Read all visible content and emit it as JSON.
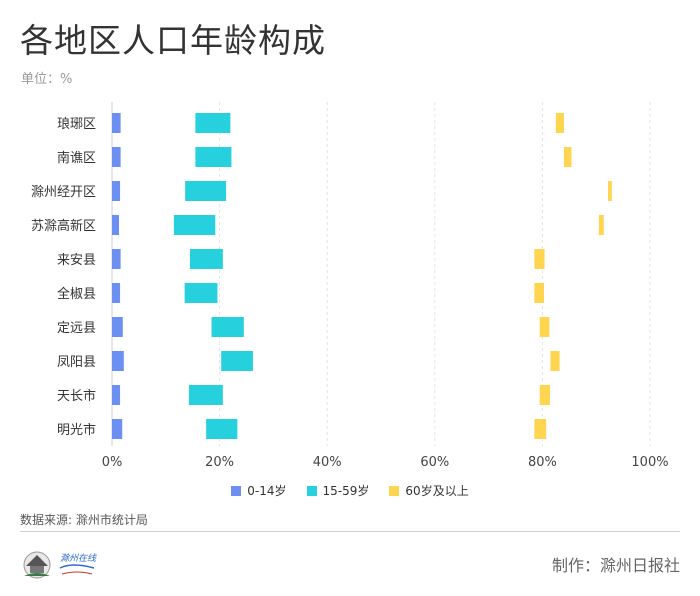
{
  "header": {
    "title": "各地区人口年龄构成",
    "unit": "单位：%"
  },
  "chart_data": {
    "type": "bar",
    "stacking": "floating horizontal ranges",
    "categories": [
      "琅琊区",
      "南谯区",
      "滁州经开区",
      "苏滁高新区",
      "来安县",
      "全椒县",
      "定远县",
      "凤阳县",
      "天长市",
      "明光市"
    ],
    "xlim": [
      0,
      100
    ],
    "xticks": [
      "0%",
      "20%",
      "40%",
      "60%",
      "80%",
      "100%"
    ],
    "grid": "vertical dashed",
    "legend_position": "bottom",
    "series": [
      {
        "name": "0-14岁",
        "color": "#6c8ff2",
        "ranges": [
          [
            0,
            1.6
          ],
          [
            0,
            1.6
          ],
          [
            0,
            1.5
          ],
          [
            0,
            1.3
          ],
          [
            0,
            1.6
          ],
          [
            0,
            1.5
          ],
          [
            0,
            2.0
          ],
          [
            0,
            2.2
          ],
          [
            0,
            1.5
          ],
          [
            0,
            1.9
          ]
        ]
      },
      {
        "name": "15-59岁",
        "color": "#26d0dc",
        "ranges": [
          [
            15.5,
            22.0
          ],
          [
            15.5,
            22.2
          ],
          [
            13.6,
            21.2
          ],
          [
            11.5,
            19.2
          ],
          [
            14.5,
            20.6
          ],
          [
            13.5,
            19.6
          ],
          [
            18.5,
            24.5
          ],
          [
            20.3,
            26.2
          ],
          [
            14.3,
            20.6
          ],
          [
            17.5,
            23.3
          ]
        ]
      },
      {
        "name": "60岁及以上",
        "color": "#ffd44f",
        "ranges": [
          [
            82.5,
            84.0
          ],
          [
            84.0,
            85.4
          ],
          [
            92.2,
            92.9
          ],
          [
            90.5,
            91.4
          ],
          [
            78.5,
            80.4
          ],
          [
            78.5,
            80.3
          ],
          [
            79.5,
            81.3
          ],
          [
            81.5,
            83.2
          ],
          [
            79.5,
            81.4
          ],
          [
            78.5,
            80.7
          ]
        ]
      }
    ]
  },
  "footer": {
    "source": "数据来源: 滁州市统计局",
    "credit": "制作：滁州日报社",
    "logo_text": "滁州在线",
    "logo_icon": "pavilion-logo-icon"
  }
}
